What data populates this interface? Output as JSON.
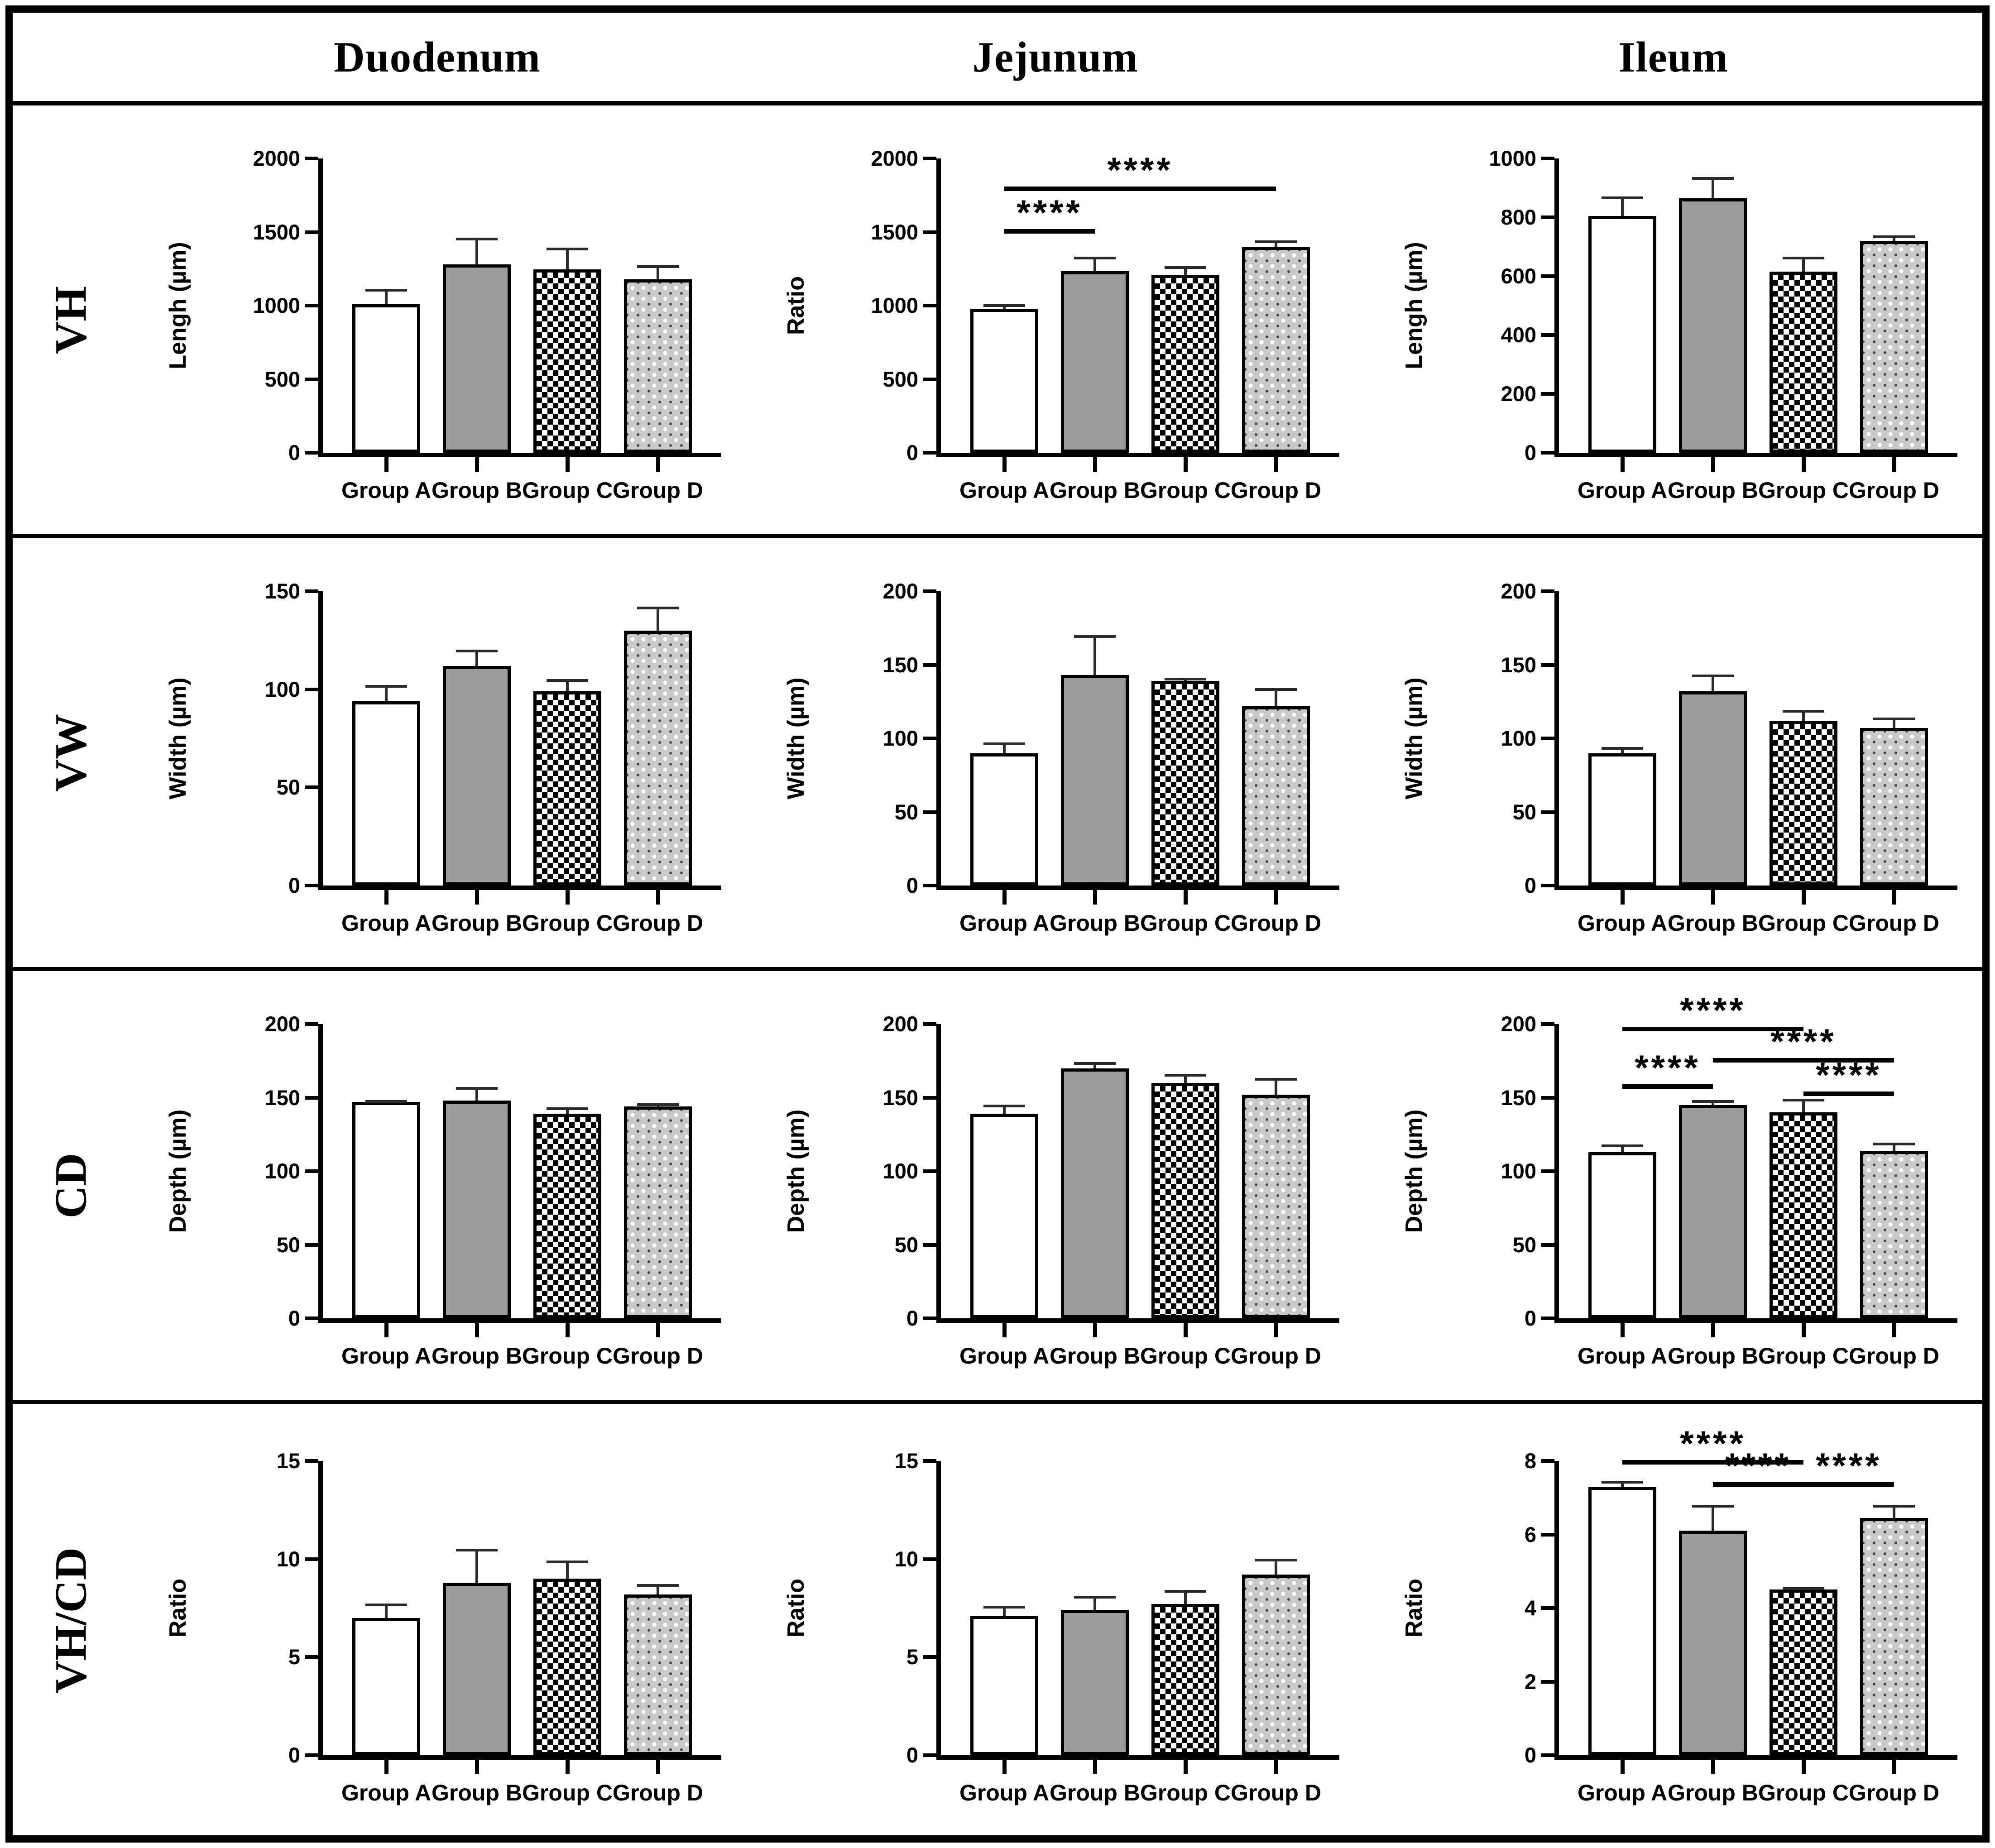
{
  "figure": {
    "col_headers": [
      "Duodenum",
      "Jejunum",
      "Ileum"
    ],
    "row_headers": [
      "VH",
      "VW",
      "CD",
      "VH/CD"
    ],
    "group_labels": [
      "Group A",
      "Group B",
      "Group C",
      "Group D"
    ],
    "significance_symbol": "****",
    "bar_fill_styles": [
      "plain-white",
      "solid-gray",
      "checkerboard",
      "dotted-gray"
    ],
    "colors": {
      "foreground": "#000000",
      "background": "#ffffff",
      "gray_bar": "#9c9c9c",
      "dotted_bar_base": "#c9c9c9"
    }
  },
  "chart_data": [
    {
      "type": "bar",
      "row": "VH",
      "col": "Duodenum",
      "ylabel": "Lengh (µm)",
      "ylim": [
        0,
        2000
      ],
      "yticks": [
        0,
        500,
        1000,
        1500,
        2000
      ],
      "categories": [
        "Group A",
        "Group B",
        "Group C",
        "Group D"
      ],
      "values": [
        1010,
        1280,
        1245,
        1180
      ],
      "upper_errors": [
        100,
        180,
        145,
        90
      ],
      "significance": []
    },
    {
      "type": "bar",
      "row": "VH",
      "col": "Jejunum",
      "ylabel": "Ratio",
      "ylim": [
        0,
        2000
      ],
      "yticks": [
        0,
        500,
        1000,
        1500,
        2000
      ],
      "categories": [
        "Group A",
        "Group B",
        "Group C",
        "Group D"
      ],
      "values": [
        980,
        1235,
        1210,
        1400
      ],
      "upper_errors": [
        25,
        95,
        55,
        40
      ],
      "significance": [
        {
          "between": [
            0,
            1
          ],
          "label": "****",
          "y": 1490
        },
        {
          "between": [
            0,
            3
          ],
          "label": "****",
          "y": 1780
        }
      ]
    },
    {
      "type": "bar",
      "row": "VH",
      "col": "Ileum",
      "ylabel": "Lengh (µm)",
      "ylim": [
        0,
        1000
      ],
      "yticks": [
        0,
        200,
        400,
        600,
        800,
        1000
      ],
      "categories": [
        "Group A",
        "Group B",
        "Group C",
        "Group D"
      ],
      "values": [
        805,
        865,
        615,
        720
      ],
      "upper_errors": [
        65,
        70,
        50,
        17
      ],
      "significance": []
    },
    {
      "type": "bar",
      "row": "VW",
      "col": "Duodenum",
      "ylabel": "Width (µm)",
      "ylim": [
        0,
        150
      ],
      "yticks": [
        0,
        50,
        100,
        150
      ],
      "categories": [
        "Group A",
        "Group B",
        "Group C",
        "Group D"
      ],
      "values": [
        94,
        112,
        99,
        130
      ],
      "upper_errors": [
        8,
        8,
        6,
        12
      ],
      "significance": []
    },
    {
      "type": "bar",
      "row": "VW",
      "col": "Jejunum",
      "ylabel": "Width (µm)",
      "ylim": [
        0,
        200
      ],
      "yticks": [
        0,
        50,
        100,
        150,
        200
      ],
      "categories": [
        "Group A",
        "Group B",
        "Group C",
        "Group D"
      ],
      "values": [
        90,
        143,
        139,
        122
      ],
      "upper_errors": [
        7,
        27,
        2,
        12
      ],
      "significance": []
    },
    {
      "type": "bar",
      "row": "VW",
      "col": "Ileum",
      "ylabel": "Width (µm)",
      "ylim": [
        0,
        200
      ],
      "yticks": [
        0,
        50,
        100,
        150,
        200
      ],
      "categories": [
        "Group A",
        "Group B",
        "Group C",
        "Group D"
      ],
      "values": [
        90,
        132,
        112,
        107
      ],
      "upper_errors": [
        4,
        11,
        7,
        7
      ],
      "significance": []
    },
    {
      "type": "bar",
      "row": "CD",
      "col": "Duodenum",
      "ylabel": "Depth (µm)",
      "ylim": [
        0,
        200
      ],
      "yticks": [
        0,
        50,
        100,
        150,
        200
      ],
      "categories": [
        "Group A",
        "Group B",
        "Group C",
        "Group D"
      ],
      "values": [
        147,
        148,
        139,
        144
      ],
      "upper_errors": [
        1,
        9,
        4,
        2
      ],
      "significance": []
    },
    {
      "type": "bar",
      "row": "CD",
      "col": "Jejunum",
      "ylabel": "Depth (µm)",
      "ylim": [
        0,
        200
      ],
      "yticks": [
        0,
        50,
        100,
        150,
        200
      ],
      "categories": [
        "Group A",
        "Group B",
        "Group C",
        "Group D"
      ],
      "values": [
        139,
        170,
        160,
        152
      ],
      "upper_errors": [
        6,
        4,
        6,
        11
      ],
      "significance": []
    },
    {
      "type": "bar",
      "row": "CD",
      "col": "Ileum",
      "ylabel": "Depth (µm)",
      "ylim": [
        0,
        200
      ],
      "yticks": [
        0,
        50,
        100,
        150,
        200
      ],
      "categories": [
        "Group A",
        "Group B",
        "Group C",
        "Group D"
      ],
      "values": [
        113,
        145,
        140,
        114
      ],
      "upper_errors": [
        5,
        3,
        9,
        5
      ],
      "significance": [
        {
          "between": [
            0,
            2
          ],
          "label": "****",
          "y": 195
        },
        {
          "between": [
            1,
            3
          ],
          "label": "****",
          "y": 174
        },
        {
          "between": [
            0,
            1
          ],
          "label": "****",
          "y": 156
        },
        {
          "between": [
            2,
            3
          ],
          "label": "****",
          "y": 151
        }
      ]
    },
    {
      "type": "bar",
      "row": "VH/CD",
      "col": "Duodenum",
      "ylabel": "Ratio",
      "ylim": [
        0,
        15
      ],
      "yticks": [
        0,
        5,
        10,
        15
      ],
      "categories": [
        "Group A",
        "Group B",
        "Group C",
        "Group D"
      ],
      "values": [
        7.0,
        8.8,
        9.0,
        8.2
      ],
      "upper_errors": [
        0.7,
        1.7,
        0.9,
        0.5
      ],
      "significance": []
    },
    {
      "type": "bar",
      "row": "VH/CD",
      "col": "Jejunum",
      "ylabel": "Ratio",
      "ylim": [
        0,
        15
      ],
      "yticks": [
        0,
        5,
        10,
        15
      ],
      "categories": [
        "Group A",
        "Group B",
        "Group C",
        "Group D"
      ],
      "values": [
        7.1,
        7.4,
        7.7,
        9.2
      ],
      "upper_errors": [
        0.5,
        0.7,
        0.7,
        0.8
      ],
      "significance": []
    },
    {
      "type": "bar",
      "row": "VH/CD",
      "col": "Ileum",
      "ylabel": "Ratio",
      "ylim": [
        0,
        8
      ],
      "yticks": [
        0,
        2,
        4,
        6,
        8
      ],
      "categories": [
        "Group A",
        "Group B",
        "Group C",
        "Group D"
      ],
      "values": [
        7.3,
        6.1,
        4.5,
        6.45
      ],
      "upper_errors": [
        0.15,
        0.7,
        0.05,
        0.35
      ],
      "significance": [
        {
          "between": [
            0,
            2
          ],
          "label": "****",
          "y": 7.9
        },
        {
          "between": [
            1,
            2
          ],
          "label": "****",
          "y": 7.3
        },
        {
          "between": [
            2,
            3
          ],
          "label": "****",
          "y": 7.3
        }
      ]
    }
  ]
}
